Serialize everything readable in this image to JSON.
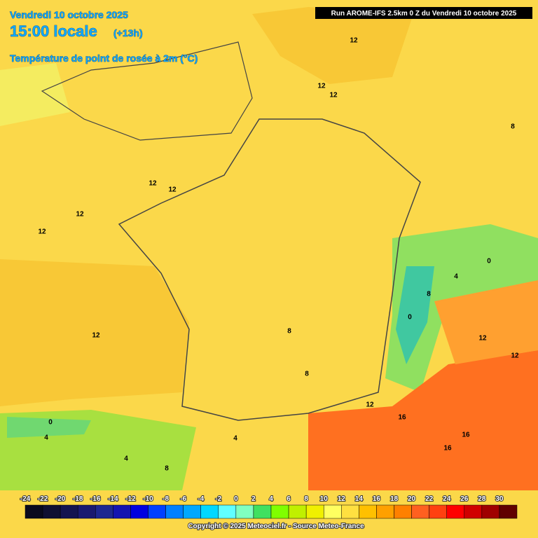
{
  "header": {
    "date": "Vendredi 10 octobre 2025",
    "time": "15:00 locale",
    "offset": "(+13h)",
    "parameter": "Température de point de rosée à 2m (°C)",
    "run": "Run AROME-IFS 2.5km 0 Z du Vendredi 10 octobre 2025"
  },
  "map": {
    "contour_labels": [
      12,
      12,
      12,
      12,
      12,
      12,
      12,
      12,
      8,
      0,
      4,
      8,
      0,
      8,
      8,
      12,
      12,
      12,
      16,
      16,
      16,
      0,
      4,
      4,
      8,
      4
    ]
  },
  "legend": {
    "values": [
      -24,
      -22,
      -20,
      -18,
      -16,
      -14,
      -12,
      -10,
      -8,
      -6,
      -4,
      -2,
      0,
      2,
      4,
      6,
      8,
      10,
      12,
      14,
      16,
      18,
      20,
      22,
      24,
      26,
      28,
      30
    ],
    "colors": [
      "#0a0a1e",
      "#101032",
      "#141450",
      "#1a1a70",
      "#1e2890",
      "#1414b0",
      "#0000e0",
      "#0040ff",
      "#0080ff",
      "#00a8ff",
      "#00d8ff",
      "#60ffff",
      "#80ffc0",
      "#40e060",
      "#80ff00",
      "#c0f000",
      "#f0f000",
      "#ffff60",
      "#ffe040",
      "#ffc000",
      "#ffa000",
      "#ff8000",
      "#ff6020",
      "#ff4010",
      "#ff0000",
      "#d00000",
      "#a00000",
      "#600000"
    ]
  },
  "footer": {
    "copyright": "Copyright © 2025 Meteociel.fr - Source Meteo-France"
  }
}
